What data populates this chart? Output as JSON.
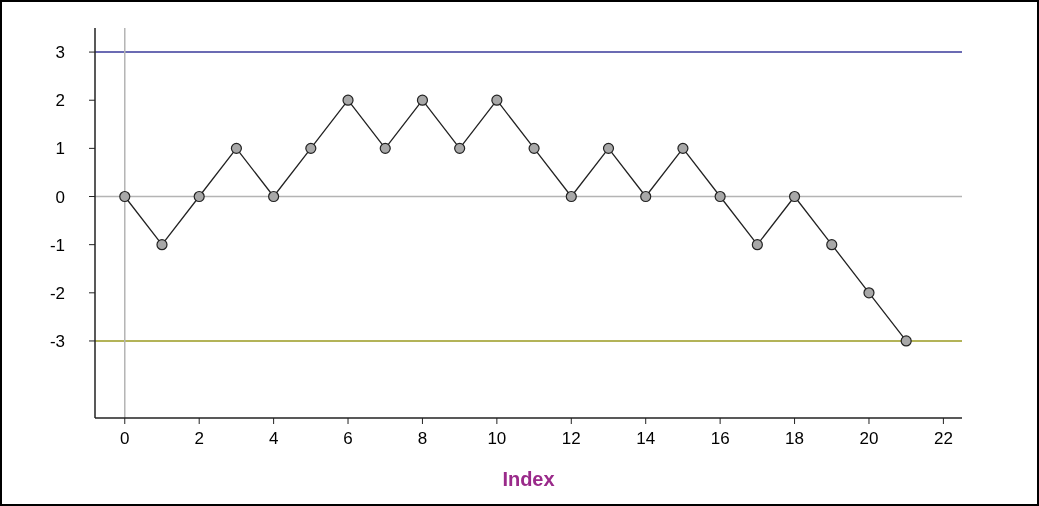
{
  "chart_data": {
    "type": "line",
    "xlabel": "Index",
    "x": [
      0,
      1,
      2,
      3,
      4,
      5,
      6,
      7,
      8,
      9,
      10,
      11,
      12,
      13,
      14,
      15,
      16,
      17,
      18,
      19,
      20,
      21
    ],
    "series": [
      {
        "color": "#222222",
        "values": [
          0,
          -1,
          0,
          1,
          0,
          1,
          2,
          1,
          2,
          1,
          2,
          1,
          0,
          1,
          0,
          1,
          0,
          -1,
          0,
          -1,
          -2,
          -3
        ]
      }
    ],
    "xlim": [
      -0.8,
      22.5
    ],
    "xticks": [
      0,
      2,
      4,
      6,
      8,
      10,
      12,
      14,
      16,
      18,
      20,
      22
    ],
    "ylim": [
      -4.6,
      3.5
    ],
    "yticks": [
      -3,
      -2,
      -1,
      0,
      1,
      2,
      3
    ],
    "ref_lines": [
      {
        "axis": "y",
        "value": 3,
        "color": "#3a3a9a"
      },
      {
        "axis": "y",
        "value": 0,
        "color": "#b4b4b4"
      },
      {
        "axis": "y",
        "value": -3,
        "color": "#9a9a20"
      },
      {
        "axis": "x",
        "value": 0,
        "color": "#b4b4b4"
      }
    ],
    "marker": "circle",
    "line_style": "solid"
  }
}
